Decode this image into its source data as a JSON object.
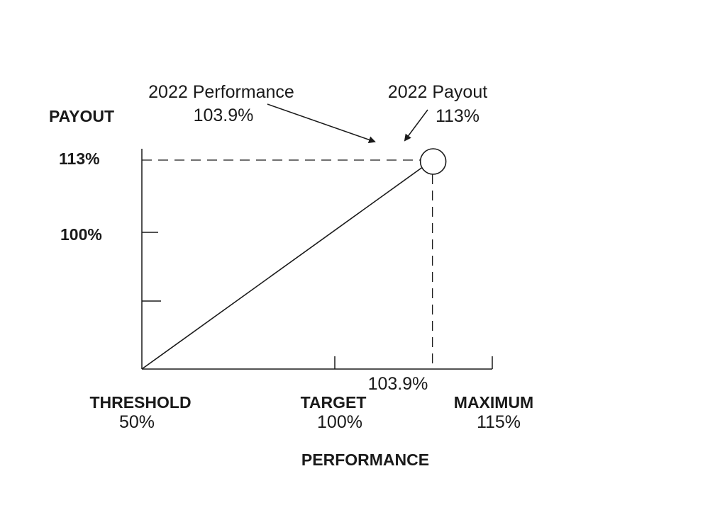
{
  "chart_data": {
    "type": "line",
    "title": "",
    "xlabel": "PERFORMANCE",
    "ylabel": "PAYOUT",
    "xlim": [
      50,
      115
    ],
    "ylim": [
      0,
      113
    ],
    "x_ticks": [
      {
        "value": 50,
        "name": "THRESHOLD",
        "pct": "50%"
      },
      {
        "value": 100,
        "name": "TARGET",
        "pct": "100%"
      },
      {
        "value": 115,
        "name": "MAXIMUM",
        "pct": "115%"
      }
    ],
    "y_ticks": [
      {
        "value": 113,
        "label": "113%"
      },
      {
        "value": 100,
        "label": "100%"
      },
      {
        "value": 50,
        "label": ""
      }
    ],
    "series": [
      {
        "x": [
          50,
          103.9
        ],
        "y": [
          0,
          113
        ]
      }
    ],
    "marker": {
      "x": 103.9,
      "y": 113,
      "x_label": "103.9%"
    },
    "annotations": {
      "performance_title": "2022 Performance",
      "performance_value": "103.9%",
      "payout_title": "2022 Payout",
      "payout_value": "113%"
    },
    "grid": false,
    "legend": "none"
  }
}
